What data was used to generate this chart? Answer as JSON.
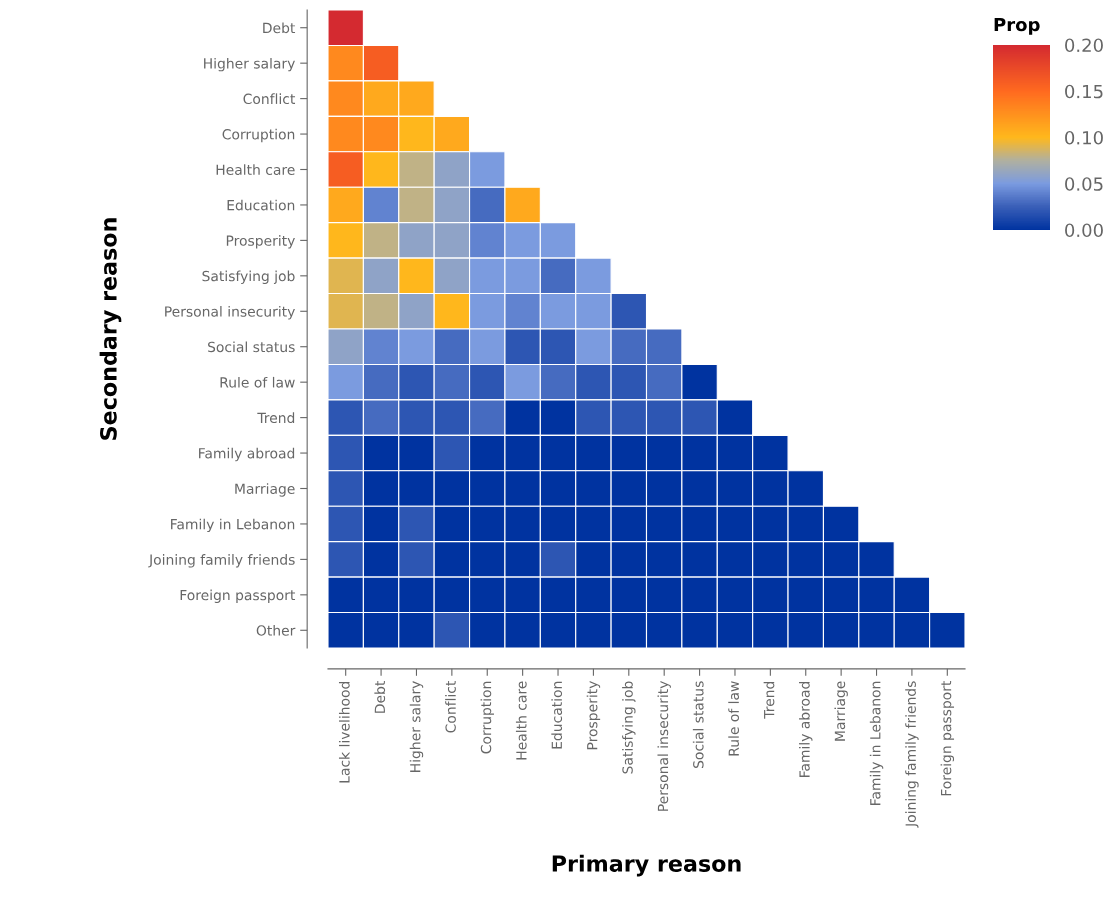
{
  "chart_data": {
    "type": "heatmap",
    "xlabel": "Primary reason",
    "ylabel": "Secondary reason",
    "clabel": "Prop",
    "categories": [
      "Lack livelihood",
      "Debt",
      "Higher salary",
      "Conflict",
      "Corruption",
      "Health care",
      "Education",
      "Prosperity",
      "Satisfying job",
      "Personal insecurity",
      "Social status",
      "Rule of law",
      "Trend",
      "Family abroad",
      "Marriage",
      "Family in Lebanon",
      "Joining family friends",
      "Foreign passport"
    ],
    "y_categories": [
      "Debt",
      "Higher salary",
      "Conflict",
      "Corruption",
      "Health care",
      "Education",
      "Prosperity",
      "Satisfying job",
      "Personal insecurity",
      "Social status",
      "Rule of law",
      "Trend",
      "Family abroad",
      "Marriage",
      "Family in Lebanon",
      "Joining family friends",
      "Foreign passport",
      "Other"
    ],
    "cells": [
      [
        0.2,
        null,
        null,
        null,
        null,
        null,
        null,
        null,
        null,
        null,
        null,
        null,
        null,
        null,
        null,
        null,
        null,
        null
      ],
      [
        0.13,
        0.16,
        null,
        null,
        null,
        null,
        null,
        null,
        null,
        null,
        null,
        null,
        null,
        null,
        null,
        null,
        null,
        null
      ],
      [
        0.13,
        0.11,
        0.11,
        null,
        null,
        null,
        null,
        null,
        null,
        null,
        null,
        null,
        null,
        null,
        null,
        null,
        null,
        null
      ],
      [
        0.13,
        0.13,
        0.1,
        0.11,
        null,
        null,
        null,
        null,
        null,
        null,
        null,
        null,
        null,
        null,
        null,
        null,
        null,
        null
      ],
      [
        0.16,
        0.1,
        0.08,
        0.06,
        0.05,
        null,
        null,
        null,
        null,
        null,
        null,
        null,
        null,
        null,
        null,
        null,
        null,
        null
      ],
      [
        0.11,
        0.04,
        0.08,
        0.06,
        0.03,
        0.11,
        null,
        null,
        null,
        null,
        null,
        null,
        null,
        null,
        null,
        null,
        null,
        null
      ],
      [
        0.1,
        0.08,
        0.06,
        0.06,
        0.04,
        0.05,
        0.05,
        null,
        null,
        null,
        null,
        null,
        null,
        null,
        null,
        null,
        null,
        null
      ],
      [
        0.09,
        0.06,
        0.1,
        0.06,
        0.05,
        0.05,
        0.03,
        0.05,
        null,
        null,
        null,
        null,
        null,
        null,
        null,
        null,
        null,
        null
      ],
      [
        0.09,
        0.08,
        0.06,
        0.1,
        0.05,
        0.04,
        0.05,
        0.05,
        0.02,
        null,
        null,
        null,
        null,
        null,
        null,
        null,
        null,
        null
      ],
      [
        0.06,
        0.04,
        0.05,
        0.03,
        0.05,
        0.02,
        0.02,
        0.05,
        0.03,
        0.03,
        null,
        null,
        null,
        null,
        null,
        null,
        null,
        null
      ],
      [
        0.05,
        0.03,
        0.02,
        0.03,
        0.02,
        0.05,
        0.03,
        0.02,
        0.02,
        0.03,
        0.0,
        null,
        null,
        null,
        null,
        null,
        null,
        null
      ],
      [
        0.02,
        0.03,
        0.02,
        0.02,
        0.03,
        0.0,
        0.0,
        0.02,
        0.02,
        0.02,
        0.02,
        0.0,
        null,
        null,
        null,
        null,
        null,
        null
      ],
      [
        0.02,
        0.0,
        0.0,
        0.02,
        0.0,
        0.0,
        0.0,
        0.0,
        0.0,
        0.0,
        0.0,
        0.0,
        0.0,
        null,
        null,
        null,
        null,
        null
      ],
      [
        0.02,
        0.0,
        0.0,
        0.0,
        0.0,
        0.0,
        0.0,
        0.0,
        0.0,
        0.0,
        0.0,
        0.0,
        0.0,
        0.0,
        null,
        null,
        null,
        null
      ],
      [
        0.02,
        0.0,
        0.02,
        0.0,
        0.0,
        0.0,
        0.0,
        0.0,
        0.0,
        0.0,
        0.0,
        0.0,
        0.0,
        0.0,
        0.0,
        null,
        null,
        null
      ],
      [
        0.02,
        0.0,
        0.02,
        0.0,
        0.0,
        0.0,
        0.02,
        0.0,
        0.0,
        0.0,
        0.0,
        0.0,
        0.0,
        0.0,
        0.0,
        0.0,
        null,
        null
      ],
      [
        0.0,
        0.0,
        0.0,
        0.0,
        0.0,
        0.0,
        0.0,
        0.0,
        0.0,
        0.0,
        0.0,
        0.0,
        0.0,
        0.0,
        0.0,
        0.0,
        0.0,
        null
      ],
      [
        0.0,
        0.0,
        0.0,
        0.02,
        0.0,
        0.0,
        0.0,
        0.0,
        0.0,
        0.0,
        0.0,
        0.0,
        0.0,
        0.0,
        0.0,
        0.0,
        0.0,
        0.0
      ]
    ],
    "clim": [
      0,
      0.2
    ],
    "cticks": [
      {
        "value": 0,
        "label": "0.00"
      },
      {
        "value": 0.05,
        "label": "0.05"
      },
      {
        "value": 0.1,
        "label": "0.10"
      },
      {
        "value": 0.15,
        "label": "0.15"
      },
      {
        "value": 0.2,
        "label": "0.20"
      }
    ]
  }
}
